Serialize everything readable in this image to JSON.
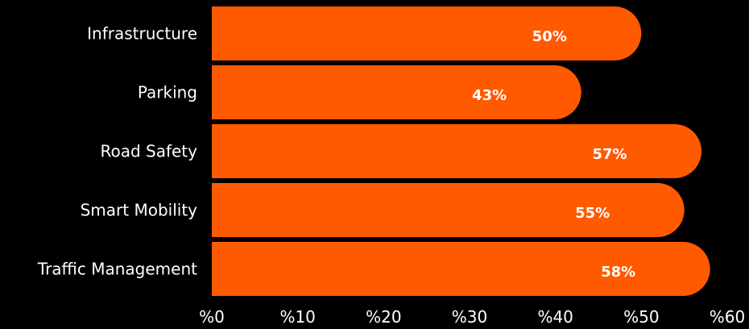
{
  "chart_data": {
    "type": "bar",
    "orientation": "horizontal",
    "categories": [
      "Infrastructure",
      "Parking",
      "Road Safety",
      "Smart Mobility",
      "Traffic Management"
    ],
    "values": [
      50,
      43,
      57,
      55,
      58
    ],
    "value_labels": [
      "50%",
      "43%",
      "57%",
      "55%",
      "58%"
    ],
    "xlim": [
      0,
      60
    ],
    "xticks": [
      0,
      10,
      20,
      30,
      40,
      50,
      60
    ],
    "xtick_labels": [
      "%0",
      "%10",
      "%20",
      "%30",
      "%40",
      "%50",
      "%60"
    ],
    "title": "",
    "xlabel": "",
    "ylabel": "",
    "grid": false,
    "legend": "none",
    "colors": {
      "background": "#000000",
      "bar": "#ff5a00",
      "value_label": "#ffffff",
      "category_label": "#ffffff",
      "tick_label": "#ffffff"
    }
  }
}
